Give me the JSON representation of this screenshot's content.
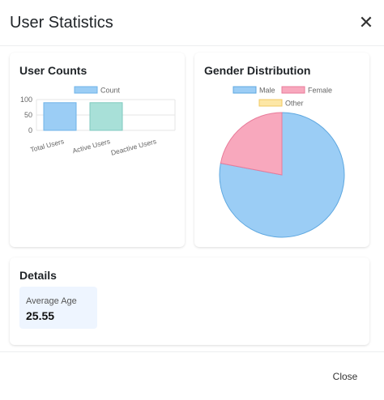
{
  "modal": {
    "title": "User Statistics",
    "close_icon_glyph": "✕",
    "close_label": "Close"
  },
  "user_counts": {
    "title": "User Counts"
  },
  "gender": {
    "title": "Gender Distribution"
  },
  "details": {
    "title": "Details",
    "average_age_label": "Average Age",
    "average_age_value": "25.55"
  },
  "chart_data": [
    {
      "type": "bar",
      "categories": [
        "Total Users",
        "Active Users",
        "Deactive Users"
      ],
      "series": [
        {
          "name": "Count",
          "values": [
            90,
            90,
            0
          ],
          "colors": [
            "#9bcdf5",
            "#a8e0d8",
            "#b8b8b8"
          ]
        }
      ],
      "ylim": [
        0,
        100
      ],
      "yticks": [
        "0",
        "50",
        "100"
      ],
      "legend": "top",
      "grid": true
    },
    {
      "type": "pie",
      "labels": [
        "Male",
        "Female",
        "Other"
      ],
      "values": [
        78,
        22,
        0
      ],
      "colors": [
        "#9bcdf5",
        "#f8a8bd",
        "#fde7a6"
      ],
      "borders": [
        "#5fa8e0",
        "#e87b9a",
        "#f0c862"
      ],
      "legend": "top"
    }
  ]
}
